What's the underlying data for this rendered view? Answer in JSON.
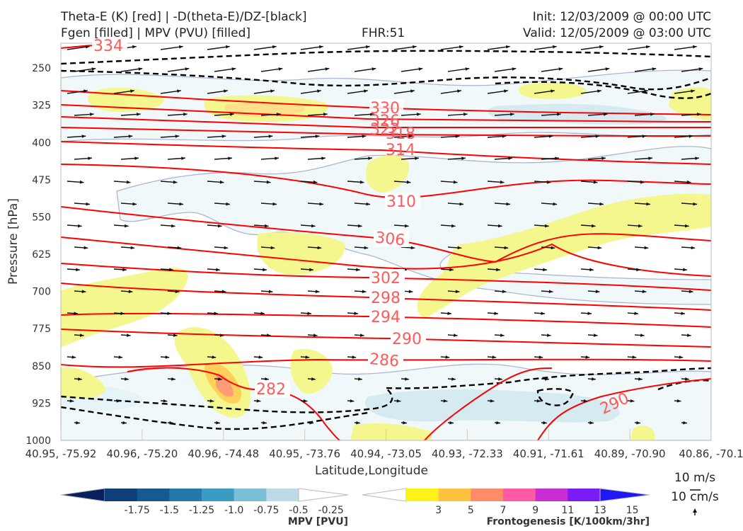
{
  "header": {
    "title_left_1": "Theta-E (K) [red] | -D(theta-E)/DZ-[black]",
    "title_left_2": "Fgen [filled] | MPV (PVU) [filled]",
    "fhr": "FHR:51",
    "init": "Init: 12/03/2009 @ 00:00 UTC",
    "valid": "Valid: 12/05/2009 @ 03:00 UTC"
  },
  "chart_data": {
    "type": "cross-section",
    "xlabel": "Latitude,Longitude",
    "ylabel": "Pressure [hPa]",
    "x_ticks": [
      "40.95, -75.92",
      "40.96, -75.20",
      "40.96, -74.48",
      "40.95, -73.76",
      "40.94, -73.05",
      "40.93, -72.33",
      "40.91, -71.61",
      "40.89, -70.90",
      "40.86, -70.1"
    ],
    "y_ticks": [
      250,
      325,
      400,
      475,
      550,
      625,
      700,
      775,
      850,
      925,
      1000
    ],
    "ylim": [
      200,
      1000
    ],
    "theta_e_contours": [
      {
        "value": 334,
        "label": "334"
      },
      {
        "value": 330,
        "label": "330"
      },
      {
        "value": 326,
        "label": "326"
      },
      {
        "value": 322,
        "label": "322"
      },
      {
        "value": 318,
        "label": "318"
      },
      {
        "value": 314,
        "label": "314"
      },
      {
        "value": 310,
        "label": "310"
      },
      {
        "value": 306,
        "label": "306"
      },
      {
        "value": 302,
        "label": "302"
      },
      {
        "value": 298,
        "label": "298"
      },
      {
        "value": 294,
        "label": "294"
      },
      {
        "value": 290,
        "label": "290"
      },
      {
        "value": 286,
        "label": "286"
      },
      {
        "value": 282,
        "label": "282"
      },
      {
        "value": 290,
        "label": "290"
      }
    ],
    "wind_reference": {
      "horizontal": "10 m/s",
      "vertical": "10 cm/s"
    }
  },
  "colorbars": {
    "mpv": {
      "label": "MPV [PVU]",
      "ticks": [
        "-1.75",
        "-1.5",
        "-1.25",
        "-1.0",
        "-0.75",
        "-0.5",
        "-0.25"
      ],
      "colors": [
        "#08205c",
        "#0e3f79",
        "#175a92",
        "#2479a8",
        "#3a9cc0",
        "#7bbed6",
        "#bcdbe6",
        "#ffffff"
      ]
    },
    "fgen": {
      "label": "Frontogenesis [K/100km/3hr]",
      "ticks": [
        "3",
        "5",
        "7",
        "9",
        "11",
        "13",
        "15"
      ],
      "colors": [
        "#ffffff",
        "#fff21a",
        "#ffc23e",
        "#ff8b6b",
        "#ff5aa3",
        "#c92ed4",
        "#7a1cf4",
        "#1f18f5"
      ]
    }
  }
}
